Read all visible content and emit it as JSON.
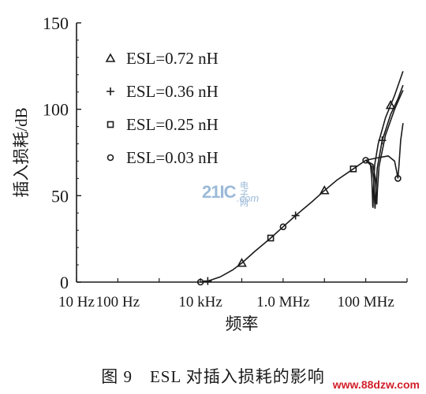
{
  "chart_data": {
    "type": "line",
    "title": "",
    "xlabel": "频率",
    "ylabel": "插入损耗/dB",
    "xscale": "log",
    "xlim_hz": [
      10,
      1000000000
    ],
    "ylim": [
      0,
      150
    ],
    "x_ticks": [
      {
        "value_hz": 10,
        "label": "10 Hz"
      },
      {
        "value_hz": 100,
        "label": "100 Hz"
      },
      {
        "value_hz": 10000,
        "label": "10 kHz"
      },
      {
        "value_hz": 1000000,
        "label": "1.0 MHz"
      },
      {
        "value_hz": 100000000,
        "label": "100 MHz"
      }
    ],
    "y_ticks": [
      {
        "value": 0,
        "label": "0"
      },
      {
        "value": 50,
        "label": "50"
      },
      {
        "value": 100,
        "label": "100"
      },
      {
        "value": 150,
        "label": "150"
      }
    ],
    "grid": false,
    "legend_position": "top-left",
    "common_curve": [
      [
        10000,
        0
      ],
      [
        15000,
        0.6
      ],
      [
        30000,
        3.0
      ],
      [
        60000,
        7.0
      ],
      [
        100000,
        11.0
      ],
      [
        200000,
        17.5
      ],
      [
        500000,
        25.5
      ],
      [
        1000000,
        32.0
      ],
      [
        2000000,
        38.5
      ],
      [
        5000000,
        46.5
      ],
      [
        10000000,
        53.0
      ],
      [
        20000000,
        59.0
      ],
      [
        50000000,
        65.5
      ],
      [
        100000000,
        70.5
      ]
    ],
    "series": [
      {
        "name": "ESL=0.72 nH",
        "marker": "triangle",
        "points": [
          [
            100000000,
            70.5
          ],
          [
            130000000,
            68
          ],
          [
            140000000,
            60
          ],
          [
            145000000,
            50
          ],
          [
            148000000,
            44
          ],
          [
            150000000,
            43
          ],
          [
            155000000,
            55
          ],
          [
            165000000,
            68
          ],
          [
            200000000,
            80
          ],
          [
            300000000,
            95
          ],
          [
            500000000,
            108
          ],
          [
            800000000,
            122
          ]
        ],
        "markers_hz": [
          100000,
          10000000,
          400000000
        ]
      },
      {
        "name": "ESL=0.36 nH",
        "marker": "plus",
        "points": [
          [
            100000000,
            70.5
          ],
          [
            140000000,
            67
          ],
          [
            155000000,
            60
          ],
          [
            162000000,
            50
          ],
          [
            166000000,
            44
          ],
          [
            168000000,
            42.5
          ],
          [
            175000000,
            52
          ],
          [
            190000000,
            66
          ],
          [
            250000000,
            82
          ],
          [
            400000000,
            97
          ],
          [
            600000000,
            106
          ],
          [
            800000000,
            114
          ]
        ],
        "markers_hz": [
          15000,
          2000000,
          250000000
        ]
      },
      {
        "name": "ESL=0.25 nH",
        "marker": "square",
        "points": [
          [
            100000000,
            70.5
          ],
          [
            150000000,
            68
          ],
          [
            170000000,
            60
          ],
          [
            178000000,
            51
          ],
          [
            182000000,
            46
          ],
          [
            185000000,
            45
          ],
          [
            192000000,
            54
          ],
          [
            210000000,
            67
          ],
          [
            300000000,
            85
          ],
          [
            500000000,
            100
          ],
          [
            700000000,
            108
          ],
          [
            800000000,
            111
          ]
        ],
        "markers_hz": [
          500000,
          50000000
        ]
      },
      {
        "name": "ESL=0.03 nH",
        "marker": "circle",
        "points": [
          [
            100000000,
            70.5
          ],
          [
            200000000,
            72
          ],
          [
            350000000,
            73
          ],
          [
            500000000,
            70
          ],
          [
            560000000,
            64
          ],
          [
            600000000,
            60
          ],
          [
            640000000,
            68
          ],
          [
            700000000,
            82
          ],
          [
            800000000,
            92
          ]
        ],
        "markers_hz": [
          10000,
          1000000,
          100000000,
          600000000
        ]
      }
    ]
  },
  "caption": "图 9　ESL 对插入损耗的影响",
  "watermark_center": {
    "main": "21IC",
    "top": "电子网",
    "bottom": ".com"
  },
  "watermark_corner": "www.88dzw.com",
  "colors": {
    "ink": "#1a1a1a",
    "watermark_blue": "#9bbad8",
    "watermark_red": "#d21f2b"
  }
}
